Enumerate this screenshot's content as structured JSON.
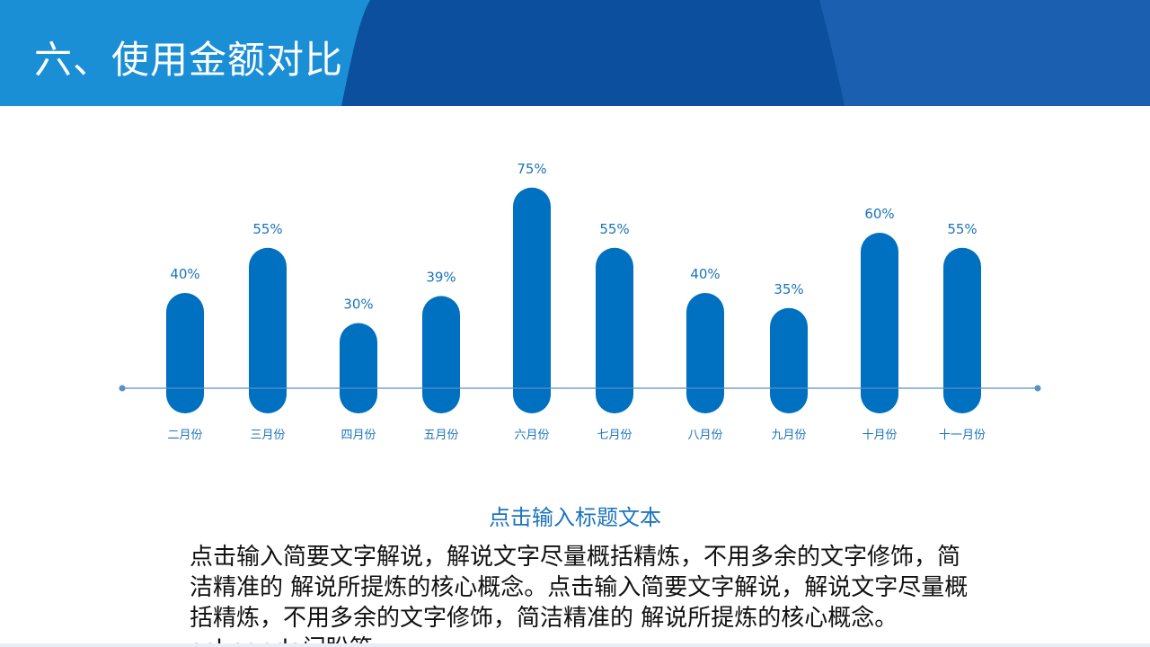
{
  "slide": {
    "title": "六、使用金额对比",
    "subtitle": "点击输入标题文本",
    "body": "点击输入简要文字解说，解说文字尽量概括精炼，不用多余的文字修饰，简洁精准的  解说所提炼的核心概念。点击输入简要文字解说，解说文字尽量概括精炼，不用多余的文字修饰，简洁精准的  解说所提炼的核心概念。askpanda问盼答"
  },
  "colors": {
    "header_light": "#1a8fd6",
    "header_dark": "#0b4f9e",
    "header_mid": "#1a5fb0",
    "bar": "#0070c0",
    "axis": "#5b8fc7",
    "label": "#1b74bd"
  },
  "chart_data": {
    "type": "bar",
    "categories": [
      "二月份",
      "三月份",
      "四月份",
      "五月份",
      "六月份",
      "七月份",
      "八月份",
      "九月份",
      "十月份",
      "十一月份"
    ],
    "values": [
      40,
      55,
      30,
      39,
      75,
      55,
      40,
      35,
      60,
      55
    ],
    "value_labels": [
      "40%",
      "55%",
      "30%",
      "39%",
      "75%",
      "55%",
      "40%",
      "35%",
      "60%",
      "55%"
    ],
    "ylim": [
      0,
      100
    ],
    "grid": false,
    "legend": "none"
  }
}
